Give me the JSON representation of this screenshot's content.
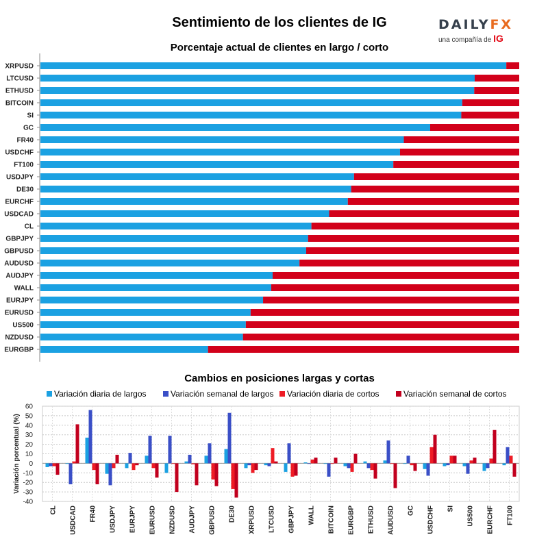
{
  "header": {
    "title": "Sentimiento de los clientes de IG",
    "logo_main_a": "DAILY",
    "logo_main_b": "FX",
    "logo_sub": "una compañía de",
    "logo_ig": "IG"
  },
  "colors": {
    "long": "#1ba1e2",
    "short": "#d2001a",
    "daily_long": "#1ba1e2",
    "weekly_long": "#3a4fc7",
    "daily_short": "#ee1c25",
    "weekly_short": "#c2001e"
  },
  "chart_data": [
    {
      "type": "bar",
      "orientation": "horizontal",
      "stacked": true,
      "title": "Porcentaje actual de clientes en largo / corto",
      "categories": [
        "XRPUSD",
        "LTCUSD",
        "ETHUSD",
        "BITCOIN",
        "SI",
        "GC",
        "FR40",
        "USDCHF",
        "FT100",
        "USDJPY",
        "DE30",
        "EURCHF",
        "USDCAD",
        "CL",
        "GBPJPY",
        "GBPUSD",
        "AUDUSD",
        "AUDJPY",
        "WALL",
        "EURJPY",
        "EURUSD",
        "US500",
        "NZDUSD",
        "EURGBP"
      ],
      "series": [
        {
          "name": "Largo",
          "values": [
            97.3,
            90.7,
            90.6,
            88.1,
            87.9,
            81.4,
            75.9,
            75.1,
            73.7,
            65.5,
            64.9,
            64.2,
            60.3,
            56.6,
            55.9,
            55.5,
            54.1,
            48.5,
            48.2,
            46.5,
            43.9,
            42.9,
            42.3,
            35.0
          ]
        },
        {
          "name": "Corto",
          "values": [
            2.7,
            9.3,
            9.4,
            11.9,
            12.1,
            18.6,
            24.1,
            24.9,
            26.3,
            34.5,
            35.1,
            35.8,
            39.7,
            43.4,
            44.1,
            44.5,
            45.9,
            51.5,
            51.8,
            53.5,
            56.1,
            57.1,
            57.7,
            65.0
          ]
        }
      ],
      "xlim": [
        0,
        100
      ],
      "grid": false
    },
    {
      "type": "bar",
      "orientation": "vertical",
      "title": "Cambios en posiciones largas y cortas",
      "ylabel": "Variación porcentual (%)",
      "ylim": [
        -40,
        60
      ],
      "yticks": [
        -40,
        -30,
        -20,
        -10,
        0,
        10,
        20,
        30,
        40,
        50,
        60
      ],
      "grid": true,
      "categories": [
        "CL",
        "USDCAD",
        "FR40",
        "USDJPY",
        "EURJPY",
        "EURUSD",
        "NZDUSD",
        "AUDJPY",
        "GBPUSD",
        "DE30",
        "XRPUSD",
        "LTCUSD",
        "GBPJPY",
        "WALL",
        "BITCOIN",
        "EURGBP",
        "ETHUSD",
        "AUDUSD",
        "GC",
        "USDCHF",
        "SI",
        "US500",
        "EURCHF",
        "FT100"
      ],
      "series": [
        {
          "name": "Variación diaria de largos",
          "values": [
            -4,
            0,
            27,
            -11,
            -5,
            8,
            -10,
            2,
            8,
            15,
            -5,
            -2,
            -9,
            1,
            0,
            -3,
            2,
            3,
            0,
            -6,
            -3,
            -3,
            -8,
            -2
          ]
        },
        {
          "name": "Variación semanal de largos",
          "values": [
            -3,
            -22,
            56,
            -23,
            11,
            29,
            29,
            9,
            21,
            53,
            -2,
            -3,
            21,
            0,
            -14,
            -5,
            -5,
            24,
            8,
            -13,
            -2,
            -11,
            -5,
            17
          ]
        },
        {
          "name": "Variación diaria de cortos",
          "values": [
            -3,
            2,
            -7,
            -5,
            -7,
            -5,
            0,
            -1,
            -17,
            -27,
            -10,
            16,
            -14,
            4,
            0,
            -9,
            -7,
            0,
            -2,
            17,
            8,
            3,
            5,
            8
          ]
        },
        {
          "name": "Variación semanal de cortos",
          "values": [
            -12,
            41,
            -22,
            9,
            -2,
            -15,
            -30,
            -23,
            -24,
            -36,
            -7,
            2,
            -13,
            6,
            6,
            10,
            -16,
            -26,
            -8,
            30,
            8,
            6,
            35,
            -14
          ]
        }
      ]
    }
  ]
}
